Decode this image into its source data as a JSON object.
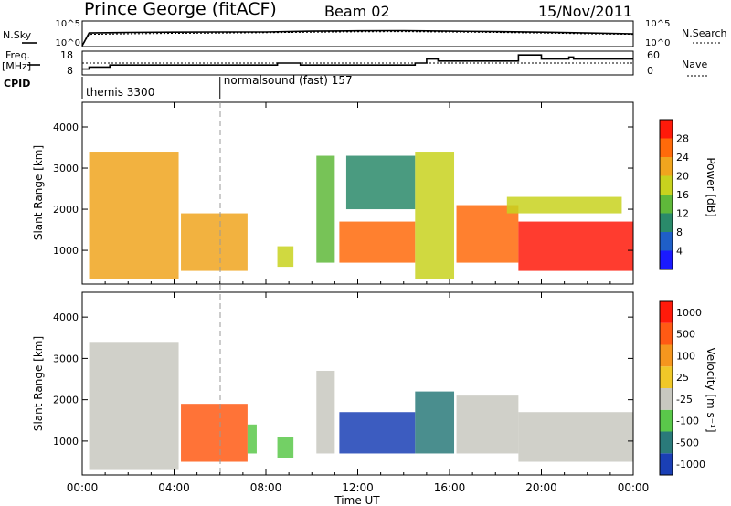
{
  "header": {
    "station": "Prince George (fitACF)",
    "beam": "Beam 02",
    "date": "15/Nov/2011"
  },
  "left_labels": {
    "nsky": "N.Sky",
    "freq": "Freq.",
    "freq_unit": "[MHz]",
    "cpid": "CPID"
  },
  "right_labels": {
    "nsearch": "N.Search",
    "nave": "Nave"
  },
  "noise_axis": {
    "left_ticks": [
      "10^5",
      "10^0"
    ],
    "right_ticks": [
      "10^5",
      "10^0"
    ]
  },
  "freq_axis": {
    "left_ticks": [
      "18",
      "8"
    ],
    "right_ticks": [
      "60",
      "0"
    ]
  },
  "cpid": [
    {
      "start_hour": 0,
      "label": "themis 3300"
    },
    {
      "start_hour": 6,
      "label": "normalsound (fast) 157"
    }
  ],
  "x_axis": {
    "label": "Time UT",
    "ticks": [
      "00:00",
      "04:00",
      "08:00",
      "12:00",
      "16:00",
      "20:00",
      "00:00"
    ],
    "range_hours": [
      0,
      24
    ]
  },
  "range_axis": {
    "label": "Slant Range [km]",
    "ticks": [
      "1000",
      "2000",
      "3000",
      "4000"
    ],
    "range_km": [
      180,
      4600
    ]
  },
  "power_colorbar": {
    "label": "Power [dB]",
    "ticks": [
      "4",
      "8",
      "12",
      "16",
      "20",
      "24",
      "28"
    ],
    "colors": [
      "#1a1aff",
      "#1f5fc8",
      "#2a8a6a",
      "#5fb83a",
      "#c8d21e",
      "#f0a51e",
      "#ff6a0a",
      "#ff1a0a"
    ]
  },
  "velocity_colorbar": {
    "label": "Velocity [m s⁻¹]",
    "ticks": [
      "1000",
      "500",
      "100",
      "25",
      "-25",
      "-100",
      "-500",
      "-1000"
    ],
    "colors": [
      "#1a3fb5",
      "#2a7a7a",
      "#5ac84a",
      "#c8c8c0",
      "#f0c828",
      "#f5961e",
      "#ff5a14",
      "#ff1a0a"
    ]
  },
  "chart_data": [
    {
      "type": "line",
      "panel": "noise",
      "series": [
        {
          "name": "N.Sky",
          "x": [
            0,
            0.3,
            2,
            4,
            6,
            8,
            10,
            12,
            14,
            16,
            18,
            20,
            22,
            24
          ],
          "y": [
            1,
            600,
            800,
            900,
            1000,
            1000,
            1500,
            1800,
            2000,
            1500,
            1200,
            900,
            600,
            400
          ]
        },
        {
          "name": "N.Search",
          "x": [
            0,
            0.3,
            2,
            4,
            6,
            8,
            10,
            12,
            14,
            16,
            18,
            20,
            22,
            24
          ],
          "y": [
            1,
            300,
            400,
            500,
            600,
            700,
            900,
            1100,
            1200,
            1000,
            800,
            600,
            400,
            300
          ]
        }
      ]
    },
    {
      "type": "line",
      "panel": "frequency",
      "series": [
        {
          "name": "Freq.",
          "x": [
            0,
            0.3,
            1.2,
            6,
            8.5,
            9.5,
            14.5,
            15,
            15.5,
            19,
            20,
            21.2,
            21.4,
            24
          ],
          "y": [
            10,
            11,
            12,
            12,
            13,
            12,
            13,
            15,
            14,
            17,
            15,
            16,
            15,
            15
          ]
        },
        {
          "name": "Nave",
          "x": [
            0,
            24
          ],
          "y": [
            30,
            30
          ]
        }
      ]
    },
    {
      "type": "heatmap",
      "panel": "power",
      "x_unit": "hours UT",
      "y_unit": "km",
      "regions": [
        {
          "t0": 0.3,
          "t1": 4.2,
          "r0": 300,
          "r1": 3400,
          "level": 5
        },
        {
          "t0": 4.3,
          "t1": 7.2,
          "r0": 500,
          "r1": 1900,
          "level": 5
        },
        {
          "t0": 8.5,
          "t1": 9.2,
          "r0": 600,
          "r1": 1100,
          "level": 4
        },
        {
          "t0": 10.2,
          "t1": 11.0,
          "r0": 700,
          "r1": 3300,
          "level": 3
        },
        {
          "t0": 11.2,
          "t1": 14.5,
          "r0": 700,
          "r1": 1700,
          "level": 6
        },
        {
          "t0": 11.5,
          "t1": 14.5,
          "r0": 2000,
          "r1": 3300,
          "level": 2
        },
        {
          "t0": 14.5,
          "t1": 16.2,
          "r0": 300,
          "r1": 3400,
          "level": 4
        },
        {
          "t0": 16.3,
          "t1": 19.0,
          "r0": 700,
          "r1": 2100,
          "level": 6
        },
        {
          "t0": 19.0,
          "t1": 24.0,
          "r0": 500,
          "r1": 1700,
          "level": 7
        },
        {
          "t0": 18.5,
          "t1": 23.5,
          "r0": 1900,
          "r1": 2300,
          "level": 4
        }
      ]
    },
    {
      "type": "heatmap",
      "panel": "velocity",
      "x_unit": "hours UT",
      "y_unit": "km",
      "regions": [
        {
          "t0": 0.3,
          "t1": 4.2,
          "r0": 300,
          "r1": 3400,
          "level": 3
        },
        {
          "t0": 4.3,
          "t1": 7.2,
          "r0": 500,
          "r1": 1900,
          "level": 6
        },
        {
          "t0": 7.2,
          "t1": 7.6,
          "r0": 700,
          "r1": 1400,
          "level": 2
        },
        {
          "t0": 8.5,
          "t1": 9.2,
          "r0": 600,
          "r1": 1100,
          "level": 2
        },
        {
          "t0": 10.2,
          "t1": 11.0,
          "r0": 700,
          "r1": 2700,
          "level": 3
        },
        {
          "t0": 11.2,
          "t1": 14.5,
          "r0": 700,
          "r1": 1700,
          "level": 0
        },
        {
          "t0": 14.5,
          "t1": 16.2,
          "r0": 700,
          "r1": 2200,
          "level": 1
        },
        {
          "t0": 16.3,
          "t1": 19.0,
          "r0": 700,
          "r1": 2100,
          "level": 3
        },
        {
          "t0": 19.0,
          "t1": 24.0,
          "r0": 500,
          "r1": 1700,
          "level": 3
        }
      ]
    }
  ]
}
